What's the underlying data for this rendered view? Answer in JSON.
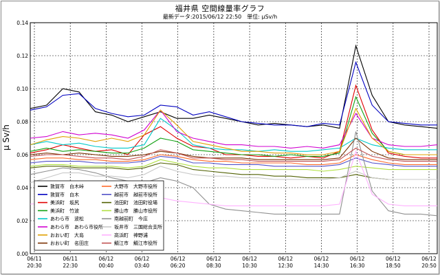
{
  "header": {
    "title": "福井県 空間線量率グラフ",
    "subtitle": "最新データ:2015/06/12 22:50　単位: μSv/h"
  },
  "chart_data": {
    "type": "line",
    "title": "福井県 空間線量率グラフ",
    "subtitle": "最新データ:2015/06/12 22:50　単位: μSv/h",
    "ylabel": "μ Sv/h",
    "xlabel": "",
    "ylim": [
      0,
      0.14
    ],
    "yticks": [
      "0.00",
      "0.02",
      "0.04",
      "0.06",
      "0.08",
      "0.10",
      "0.12",
      "0.14"
    ],
    "xticks": [
      {
        "line1": "06/11",
        "line2": "20:30"
      },
      {
        "line1": "06/11",
        "line2": "22:30"
      },
      {
        "line1": "06/12",
        "line2": "00:40"
      },
      {
        "line1": "06/12",
        "line2": "03:40"
      },
      {
        "line1": "06/12",
        "line2": "06:20"
      },
      {
        "line1": "06/12",
        "line2": "08:30"
      },
      {
        "line1": "06/12",
        "line2": "10:30"
      },
      {
        "line1": "06/12",
        "line2": "12:30"
      },
      {
        "line1": "06/12",
        "line2": "14:30"
      },
      {
        "line1": "06/12",
        "line2": "16:30"
      },
      {
        "line1": "06/12",
        "line2": "18:50"
      },
      {
        "line1": "06/12",
        "line2": "20:50"
      }
    ],
    "grid": true,
    "legend_position": "bottom-left",
    "series": [
      {
        "name": "敦賀市　白木峠",
        "color": "#000000",
        "values": [
          0.088,
          0.09,
          0.1,
          0.098,
          0.086,
          0.084,
          0.08,
          0.083,
          0.086,
          0.082,
          0.082,
          0.084,
          0.082,
          0.08,
          0.078,
          0.079,
          0.078,
          0.077,
          0.078,
          0.076,
          0.126,
          0.096,
          0.08,
          0.078,
          0.077,
          0.076
        ]
      },
      {
        "name": "敦賀市　白木",
        "color": "#0000c0",
        "values": [
          0.087,
          0.089,
          0.096,
          0.097,
          0.088,
          0.085,
          0.083,
          0.084,
          0.09,
          0.089,
          0.084,
          0.086,
          0.083,
          0.08,
          0.079,
          0.078,
          0.078,
          0.077,
          0.079,
          0.078,
          0.116,
          0.09,
          0.08,
          0.079,
          0.078,
          0.078
        ]
      },
      {
        "name": "美浜町　坂尻",
        "color": "#e00000",
        "values": [
          0.061,
          0.063,
          0.066,
          0.064,
          0.062,
          0.063,
          0.06,
          0.072,
          0.077,
          0.07,
          0.065,
          0.064,
          0.06,
          0.06,
          0.059,
          0.059,
          0.058,
          0.059,
          0.058,
          0.062,
          0.102,
          0.075,
          0.061,
          0.059,
          0.058,
          0.058
        ]
      },
      {
        "name": "美浜町　竹波",
        "color": "#10a010",
        "values": [
          0.062,
          0.064,
          0.062,
          0.063,
          0.062,
          0.061,
          0.061,
          0.064,
          0.07,
          0.068,
          0.063,
          0.062,
          0.061,
          0.06,
          0.06,
          0.059,
          0.06,
          0.059,
          0.059,
          0.061,
          0.095,
          0.073,
          0.062,
          0.06,
          0.06,
          0.06
        ]
      },
      {
        "name": "あわら市　波松",
        "color": "#00c8c8",
        "values": [
          0.066,
          0.068,
          0.066,
          0.067,
          0.065,
          0.064,
          0.064,
          0.066,
          0.082,
          0.075,
          0.066,
          0.064,
          0.063,
          0.063,
          0.062,
          0.063,
          0.062,
          0.062,
          0.063,
          0.064,
          0.07,
          0.066,
          0.064,
          0.063,
          0.063,
          0.063
        ]
      },
      {
        "name": "あわら市　あわら市役所",
        "color": "#d000d0",
        "values": [
          0.07,
          0.071,
          0.074,
          0.072,
          0.073,
          0.072,
          0.07,
          0.075,
          0.087,
          0.074,
          0.07,
          0.068,
          0.066,
          0.066,
          0.065,
          0.065,
          0.064,
          0.065,
          0.064,
          0.066,
          0.085,
          0.07,
          0.066,
          0.065,
          0.065,
          0.066
        ]
      },
      {
        "name": "おおい町　大島",
        "color": "#e0a000",
        "values": [
          0.066,
          0.069,
          0.071,
          0.07,
          0.068,
          0.07,
          0.068,
          0.072,
          0.087,
          0.078,
          0.068,
          0.066,
          0.064,
          0.062,
          0.062,
          0.061,
          0.061,
          0.06,
          0.06,
          0.062,
          0.088,
          0.07,
          0.062,
          0.06,
          0.06,
          0.06
        ]
      },
      {
        "name": "おおい町　名田庄",
        "color": "#7a3000",
        "values": [
          0.06,
          0.061,
          0.06,
          0.061,
          0.06,
          0.059,
          0.059,
          0.06,
          0.062,
          0.061,
          0.059,
          0.058,
          0.058,
          0.058,
          0.057,
          0.057,
          0.057,
          0.057,
          0.057,
          0.058,
          0.07,
          0.062,
          0.058,
          0.057,
          0.057,
          0.057
        ]
      },
      {
        "name": "大野市　大野市役所",
        "color": "#ff6a2a",
        "values": [
          0.057,
          0.058,
          0.058,
          0.057,
          0.057,
          0.056,
          0.056,
          0.057,
          0.06,
          0.059,
          0.057,
          0.056,
          0.056,
          0.055,
          0.055,
          0.055,
          0.055,
          0.054,
          0.054,
          0.055,
          0.06,
          0.057,
          0.055,
          0.054,
          0.054,
          0.054
        ]
      },
      {
        "name": "越前市　越前市役所",
        "color": "#5050c8",
        "values": [
          0.055,
          0.056,
          0.056,
          0.056,
          0.055,
          0.055,
          0.055,
          0.056,
          0.059,
          0.058,
          0.055,
          0.055,
          0.054,
          0.054,
          0.054,
          0.053,
          0.053,
          0.053,
          0.053,
          0.054,
          0.058,
          0.055,
          0.054,
          0.053,
          0.053,
          0.053
        ]
      },
      {
        "name": "池田町　池田町役場",
        "color": "#506000",
        "values": [
          0.052,
          0.053,
          0.053,
          0.052,
          0.052,
          0.052,
          0.051,
          0.052,
          0.055,
          0.054,
          0.051,
          0.05,
          0.049,
          0.048,
          0.048,
          0.047,
          0.047,
          0.046,
          0.046,
          0.046,
          0.048,
          0.046,
          0.045,
          0.045,
          0.045,
          0.045
        ]
      },
      {
        "name": "勝山市　勝山市役所",
        "color": "#b0e040",
        "values": [
          0.053,
          0.054,
          0.054,
          0.053,
          0.053,
          0.053,
          0.052,
          0.053,
          0.057,
          0.055,
          0.053,
          0.052,
          0.052,
          0.051,
          0.051,
          0.051,
          0.051,
          0.051,
          0.05,
          0.051,
          0.053,
          0.052,
          0.051,
          0.051,
          0.051,
          0.051
        ]
      },
      {
        "name": "南越前町　今庄",
        "color": "#909090",
        "values": [
          0.048,
          0.05,
          0.052,
          0.051,
          0.049,
          0.046,
          0.044,
          0.043,
          0.046,
          0.044,
          0.04,
          0.03,
          0.027,
          0.026,
          0.025,
          0.024,
          0.024,
          0.024,
          0.024,
          0.024,
          0.074,
          0.038,
          0.026,
          0.024,
          0.024,
          0.023
        ]
      },
      {
        "name": "坂井市　三国総合支所",
        "color": "#c8c8c8",
        "values": [
          0.043,
          0.046,
          0.049,
          0.049,
          0.047,
          0.047,
          0.046,
          0.048,
          0.053,
          0.05,
          0.048,
          0.047,
          0.047,
          0.046,
          0.046,
          0.045,
          0.045,
          0.045,
          0.045,
          0.046,
          0.05,
          0.046,
          0.045,
          0.045,
          0.045,
          0.045
        ]
      },
      {
        "name": "高浜町　神野浦",
        "color": "#ffb0ff",
        "values": [
          0.03,
          0.031,
          0.032,
          0.031,
          0.031,
          0.03,
          0.03,
          0.031,
          0.034,
          0.032,
          0.031,
          0.03,
          0.029,
          0.029,
          0.029,
          0.029,
          0.029,
          0.029,
          0.029,
          0.03,
          0.062,
          0.036,
          0.03,
          0.029,
          0.029,
          0.029
        ]
      },
      {
        "name": "鯖江市　鯖江市役所",
        "color": "#c05050",
        "values": [
          0.059,
          0.06,
          0.06,
          0.059,
          0.058,
          0.058,
          0.057,
          0.059,
          0.063,
          0.061,
          0.058,
          0.058,
          0.057,
          0.057,
          0.056,
          0.056,
          0.056,
          0.056,
          0.056,
          0.057,
          0.064,
          0.059,
          0.057,
          0.056,
          0.056,
          0.056
        ]
      }
    ]
  }
}
